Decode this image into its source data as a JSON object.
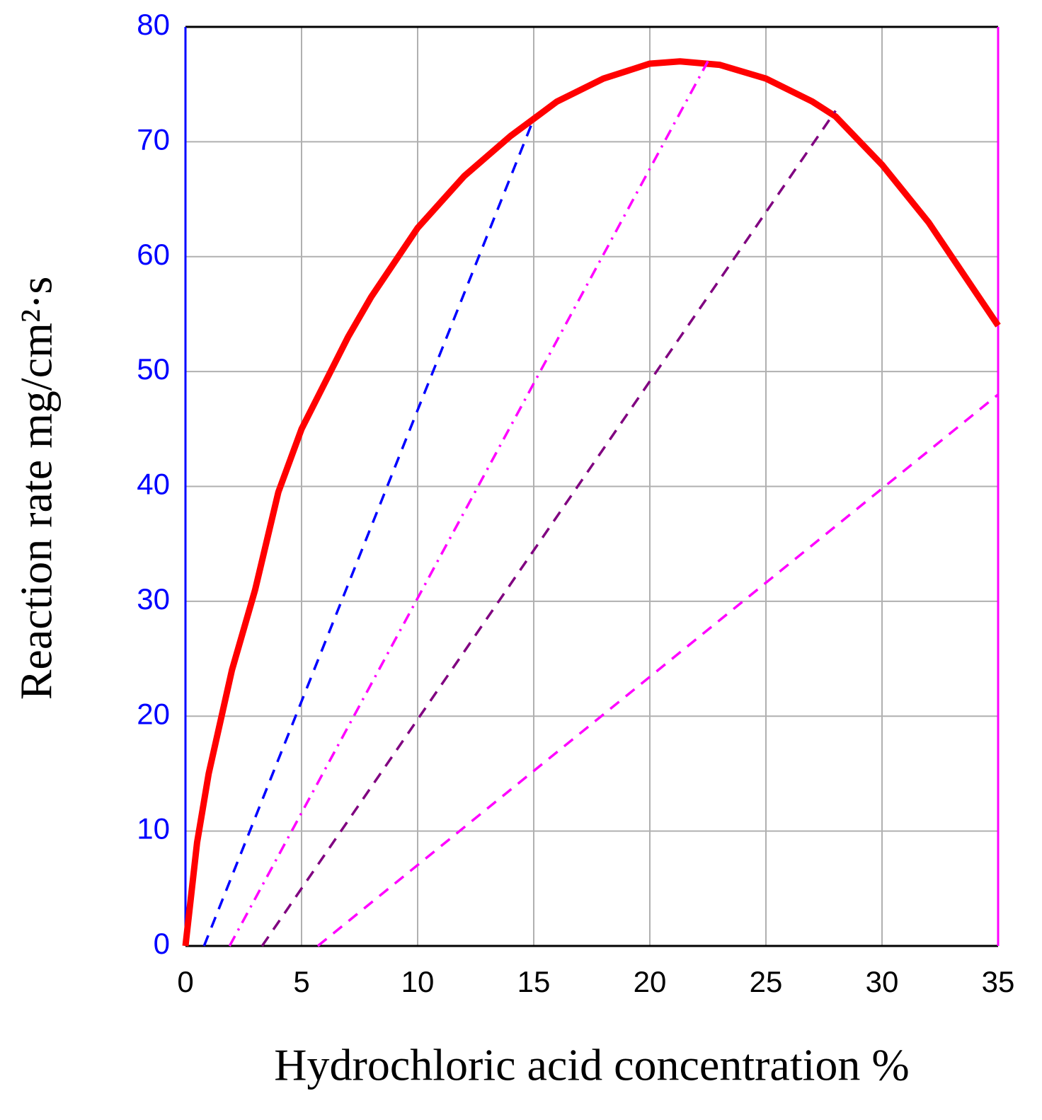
{
  "chart_data": {
    "type": "line",
    "xlabel": "Hydrochloric acid concentration %",
    "ylabel": "Reaction rate mg/cm²·s",
    "xlim": [
      0,
      35
    ],
    "ylim": [
      0,
      80
    ],
    "xticks": [
      0,
      5,
      10,
      15,
      20,
      25,
      30,
      35
    ],
    "yticks": [
      0,
      10,
      20,
      30,
      40,
      50,
      60,
      70,
      80
    ],
    "grid": true,
    "series": [
      {
        "color": "#ff0000",
        "style": "solid",
        "x": [
          0,
          0.5,
          1,
          2,
          3,
          4,
          5,
          6,
          7,
          8,
          9,
          10,
          12,
          14,
          16,
          18,
          20,
          21.3,
          23,
          25,
          27,
          28,
          30,
          32,
          34,
          35
        ],
        "values": [
          0,
          9,
          15,
          24,
          31,
          39.5,
          45,
          49,
          53,
          56.5,
          59.5,
          62.5,
          67,
          70.5,
          73.5,
          75.5,
          76.8,
          77,
          76.7,
          75.5,
          73.5,
          72.2,
          68,
          63,
          57,
          54
        ]
      },
      {
        "color": "#0000ff",
        "style": "dashed",
        "x": [
          0.8,
          15
        ],
        "values": [
          0,
          72
        ]
      },
      {
        "color": "#ff00ff",
        "style": "dashdot",
        "x": [
          1.9,
          22.5
        ],
        "values": [
          0,
          77
        ]
      },
      {
        "color": "#800080",
        "style": "dashed",
        "x": [
          3.3,
          28
        ],
        "values": [
          0,
          72.7
        ]
      },
      {
        "color": "#ff00ff",
        "style": "dashed",
        "x": [
          5.7,
          35
        ],
        "values": [
          0,
          48
        ]
      }
    ]
  }
}
